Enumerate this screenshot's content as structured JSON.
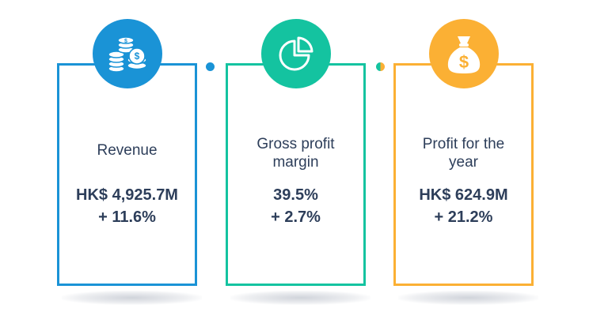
{
  "colors": {
    "blue": "#1a93d6",
    "green": "#14c3a0",
    "orange": "#fbb034",
    "text": "#2d3e5a"
  },
  "cards": [
    {
      "label": "Revenue",
      "value_line1": "HK$ 4,925.7M",
      "value_line2": "+ 11.6%",
      "icon": "coins-icon"
    },
    {
      "label": "Gross profit margin",
      "value_line1": "39.5%",
      "value_line2": "+ 2.7%",
      "icon": "pie-chart-icon"
    },
    {
      "label": "Profit for the year",
      "value_line1": "HK$ 624.9M",
      "value_line2": "+ 21.2%",
      "icon": "money-bag-icon"
    }
  ]
}
